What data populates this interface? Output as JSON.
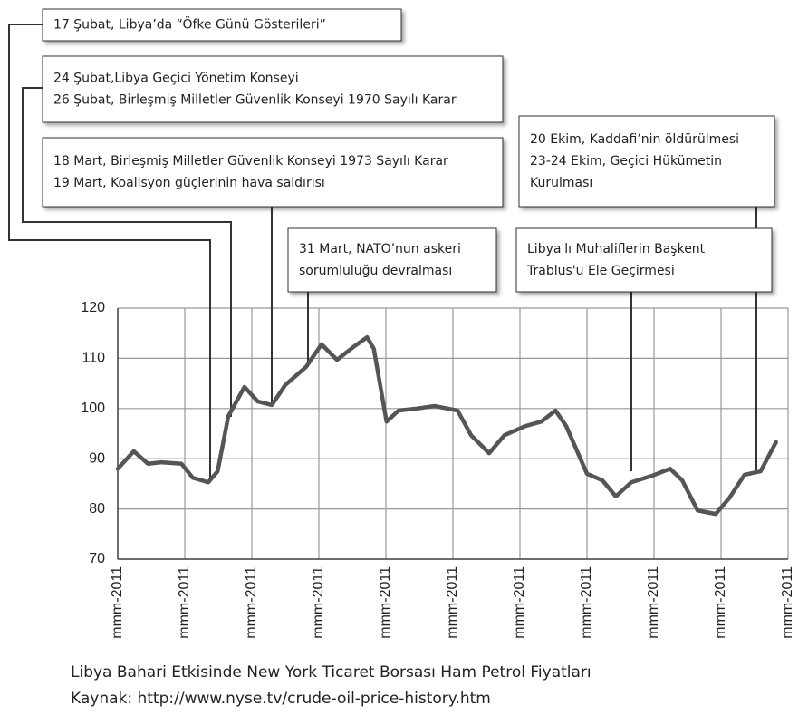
{
  "chart_data": {
    "type": "line",
    "title": "Libya Bahari Etkisinde New York Ticaret Borsası Ham Petrol Fiyatları",
    "subtitle": "Kaynak: http://www.nyse.tv/crude-oil-price-history.htm",
    "xlim": [
      0,
      10
    ],
    "xticks": [
      {
        "value": 0,
        "label": "mmm-2011"
      },
      {
        "value": 1,
        "label": "mmm-2011"
      },
      {
        "value": 2,
        "label": "mmm-2011"
      },
      {
        "value": 3,
        "label": "mmm-2011"
      },
      {
        "value": 4,
        "label": "mmm-2011"
      },
      {
        "value": 5,
        "label": "mmm-2011"
      },
      {
        "value": 6,
        "label": "mmm-2011"
      },
      {
        "value": 7,
        "label": "mmm-2011"
      },
      {
        "value": 8,
        "label": "mmm-2011"
      },
      {
        "value": 9,
        "label": "mmm-2011"
      },
      {
        "value": 10,
        "label": "mmm-2011"
      }
    ],
    "ylim": [
      70,
      120
    ],
    "yticks": [
      70,
      80,
      90,
      100,
      110,
      120
    ],
    "grid": true,
    "series": [
      {
        "color": "#555555",
        "x": [
          0,
          0.24,
          0.45,
          0.65,
          0.95,
          1.12,
          1.35,
          1.49,
          1.65,
          1.89,
          2.09,
          2.3,
          2.5,
          2.81,
          3.04,
          3.27,
          3.51,
          3.72,
          3.82,
          4.01,
          4.19,
          4.46,
          4.73,
          5.07,
          5.27,
          5.54,
          5.77,
          6.08,
          6.32,
          6.53,
          6.69,
          7.0,
          7.23,
          7.43,
          7.66,
          7.97,
          8.24,
          8.42,
          8.65,
          8.92,
          9.12,
          9.35,
          9.59,
          9.82
        ],
        "values": [
          88,
          91.5,
          89,
          89.3,
          89,
          86.2,
          85.3,
          87.5,
          98.5,
          104.3,
          101.4,
          100.7,
          104.7,
          108.3,
          112.8,
          109.7,
          112.2,
          114.2,
          111.9,
          97.4,
          99.6,
          100,
          100.5,
          99.6,
          94.7,
          91.1,
          94.7,
          96.5,
          97.4,
          99.6,
          96.5,
          87,
          85.7,
          82.5,
          85.3,
          86.6,
          88,
          85.7,
          79.7,
          79,
          82.1,
          86.8,
          87.5,
          93.3
        ]
      }
    ],
    "annotations": [
      {
        "lines": [
          "17 Şubat, Libya’da “Öfke Günü Gösterileri”"
        ]
      },
      {
        "lines": [
          "24 Şubat,Libya Geçici Yönetim Konseyi",
          "26 Şubat, Birleşmiş Milletler Güvenlik Konseyi 1970 Sayılı Karar"
        ]
      },
      {
        "lines": [
          "18 Mart, Birleşmiş Milletler Güvenlik Konseyi 1973 Sayılı Karar",
          "19 Mart, Koalisyon güçlerinin hava saldırısı"
        ]
      },
      {
        "lines": [
          "31 Mart, NATO’nun askeri",
          "sorumluluğu devralması"
        ]
      },
      {
        "lines": [
          "Libya'lı Muhaliflerin Başkent",
          "Trablus'u Ele Geçirmesi"
        ]
      },
      {
        "lines": [
          "20 Ekim, Kaddafi’nin öldürülmesi",
          "23-24 Ekim, Geçici Hükümetin",
          "Kurulması"
        ]
      }
    ]
  }
}
